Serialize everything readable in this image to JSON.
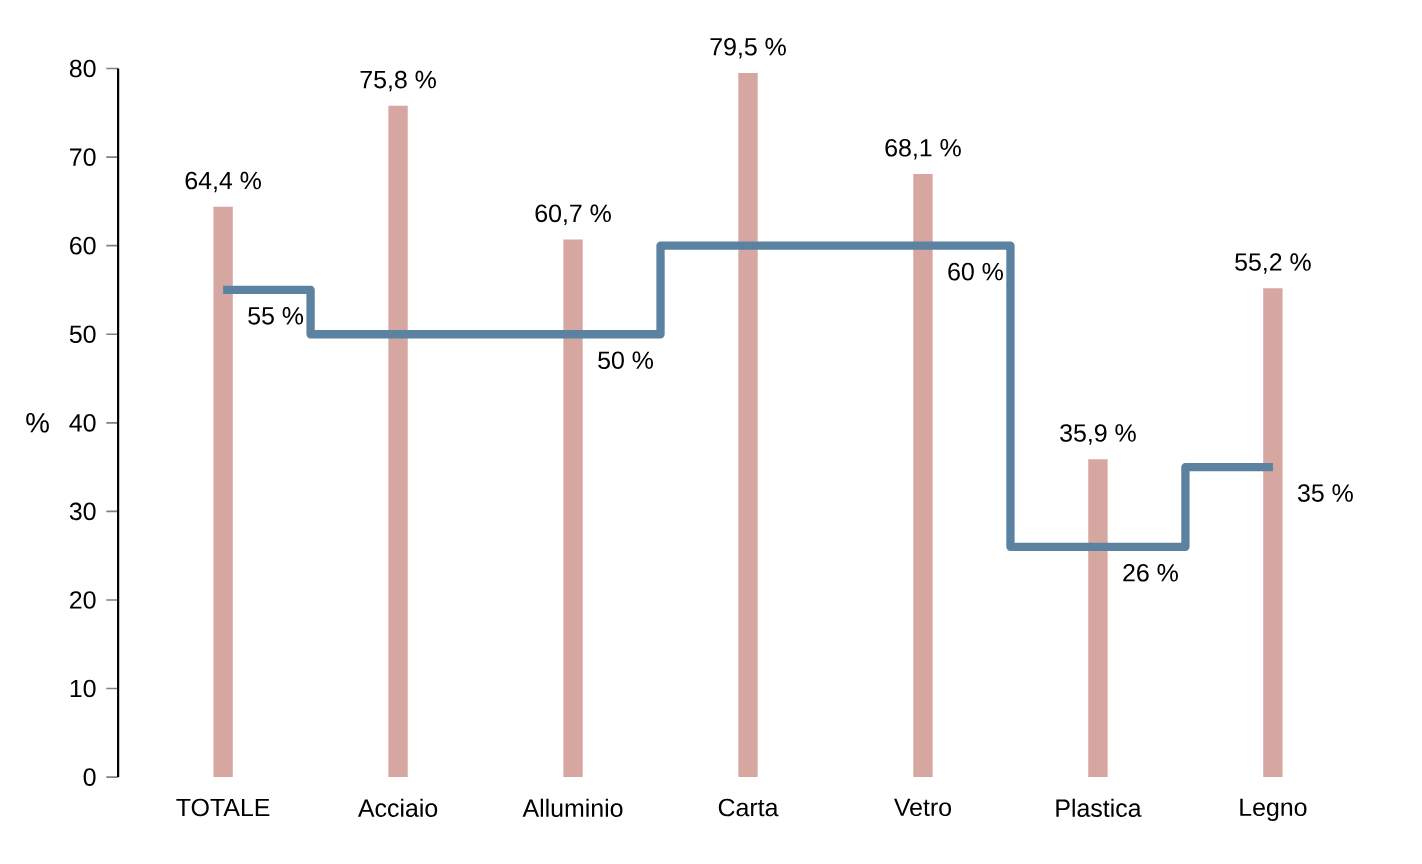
{
  "chart_data": {
    "type": "bar",
    "ylabel": "%",
    "categories": [
      "TOTALE",
      "Acciaio",
      "Alluminio",
      "Carta",
      "Vetro",
      "Plastica",
      "Legno"
    ],
    "series": [
      {
        "color": "#d6a7a1",
        "values": [
          64.4,
          75.8,
          60.7,
          79.5,
          68.1,
          35.9,
          55.2
        ],
        "value_labels": [
          "64,4 %",
          "75,8 %",
          "60,7 %",
          "79,5 %",
          "68,1 %",
          "35,9 %",
          "55,2 %"
        ]
      },
      {
        "type": "step",
        "color": "#5b82a0",
        "values": [
          55,
          50,
          50,
          60,
          60,
          26,
          35
        ],
        "value_labels": [
          "55 %",
          null,
          "50 %",
          null,
          "60 %",
          "26 %",
          "35 %"
        ]
      }
    ],
    "ylim": [
      0,
      80
    ],
    "yticks": [
      0,
      10,
      20,
      30,
      40,
      50,
      60,
      70,
      80
    ],
    "grid": false,
    "legend": false
  }
}
